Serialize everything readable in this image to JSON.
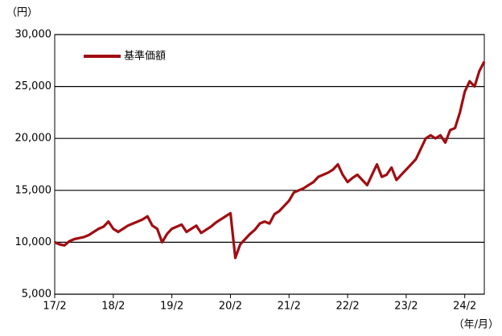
{
  "chart_data": {
    "type": "line",
    "y_label": "（円）",
    "x_label": "（年/月）",
    "x": [
      "17/2",
      "17/3",
      "17/4",
      "17/5",
      "17/6",
      "17/7",
      "17/8",
      "17/9",
      "17/10",
      "17/11",
      "17/12",
      "18/1",
      "18/2",
      "18/3",
      "18/4",
      "18/5",
      "18/6",
      "18/7",
      "18/8",
      "18/9",
      "18/10",
      "18/11",
      "18/12",
      "19/1",
      "19/2",
      "19/3",
      "19/4",
      "19/5",
      "19/6",
      "19/7",
      "19/8",
      "19/9",
      "19/10",
      "19/11",
      "19/12",
      "20/1",
      "20/2",
      "20/3",
      "20/4",
      "20/5",
      "20/6",
      "20/7",
      "20/8",
      "20/9",
      "20/10",
      "20/11",
      "20/12",
      "21/1",
      "21/2",
      "21/3",
      "21/4",
      "21/5",
      "21/6",
      "21/7",
      "21/8",
      "21/9",
      "21/10",
      "21/11",
      "21/12",
      "22/1",
      "22/2",
      "22/3",
      "22/4",
      "22/5",
      "22/6",
      "22/7",
      "22/8",
      "22/9",
      "22/10",
      "22/11",
      "22/12",
      "23/1",
      "23/2",
      "23/3",
      "23/4",
      "23/5",
      "23/6",
      "23/7",
      "23/8",
      "23/9",
      "23/10",
      "23/11",
      "23/12",
      "24/1",
      "24/2",
      "24/3",
      "24/4",
      "24/5",
      "24/6"
    ],
    "series": [
      {
        "name": "基準価額",
        "color": "#a00d12",
        "values": [
          10000,
          9800,
          9700,
          10100,
          10300,
          10400,
          10500,
          10700,
          11000,
          11300,
          11500,
          12000,
          11300,
          11000,
          11300,
          11600,
          11800,
          12000,
          12200,
          12500,
          11600,
          11300,
          10000,
          10800,
          11300,
          11500,
          11700,
          11000,
          11300,
          11600,
          10900,
          11200,
          11500,
          11900,
          12200,
          12500,
          12800,
          8500,
          9800,
          10300,
          10800,
          11200,
          11800,
          12000,
          11800,
          12700,
          13000,
          13500,
          14000,
          14800,
          15000,
          15200,
          15500,
          15800,
          16300,
          16500,
          16700,
          17000,
          17500,
          16500,
          15800,
          16200,
          16500,
          16000,
          15500,
          16500,
          17500,
          16300,
          16500,
          17200,
          16000,
          16500,
          17000,
          17500,
          18000,
          19000,
          20000,
          20300,
          20000,
          20300,
          19600,
          20800,
          21000,
          22500,
          24500,
          25500,
          25000,
          26500,
          27400
        ]
      }
    ],
    "xlim": [
      "17/2",
      "24/6"
    ],
    "xticks": [
      "17/2",
      "18/2",
      "19/2",
      "20/2",
      "21/2",
      "22/2",
      "23/2",
      "24/2"
    ],
    "ylim": [
      5000,
      30000
    ],
    "yticks": [
      {
        "value": 5000,
        "label": "5,000"
      },
      {
        "value": 10000,
        "label": "10,000"
      },
      {
        "value": 15000,
        "label": "15,000"
      },
      {
        "value": 20000,
        "label": "20,000"
      },
      {
        "value": 25000,
        "label": "25,000"
      },
      {
        "value": 30000,
        "label": "30,000"
      }
    ],
    "grid": true,
    "legend": "upper left"
  }
}
